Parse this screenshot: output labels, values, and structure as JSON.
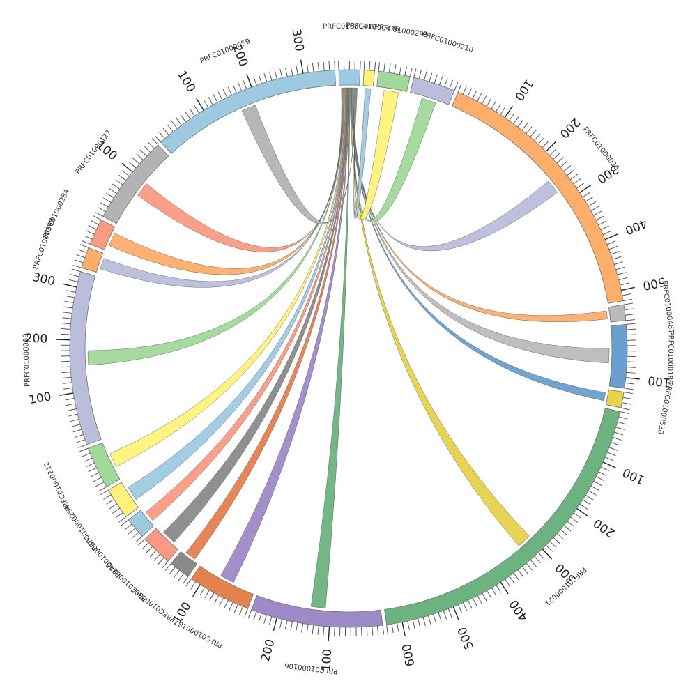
{
  "chart_data": {
    "type": "chord",
    "segments": [
      {
        "name": "PRFC01000410",
        "length": 40,
        "color": "#9ecae1"
      },
      {
        "name": "PRFC01000476",
        "length": 20,
        "color": "#fff27a"
      },
      {
        "name": "PRFC01000293",
        "length": 60,
        "color": "#a1d99b"
      },
      {
        "name": "PRFC01000210",
        "length": 80,
        "color": "#bcbddc"
      },
      {
        "name": "PRFC01000026",
        "length": 520,
        "color": "#fdae6b"
      },
      {
        "name": "PRFC01000467",
        "length": 30,
        "color": "#bababa"
      },
      {
        "name": "PRFC01000186",
        "length": 120,
        "color": "#6a9fcf"
      },
      {
        "name": "PRFC01000538",
        "length": 30,
        "color": "#e7d24a"
      },
      {
        "name": "PRFC01000021",
        "length": 630,
        "color": "#6db37f"
      },
      {
        "name": "PRFC01000106",
        "length": 250,
        "color": "#9e8ac7"
      },
      {
        "name": "PRFC01000187",
        "length": 120,
        "color": "#e5804f"
      },
      {
        "name": "PRFC01000307",
        "length": 40,
        "color": "#8a8a8a"
      },
      {
        "name": "PRFC01000245",
        "length": 60,
        "color": "#fb9a82"
      },
      {
        "name": "PRFC01000303",
        "length": 40,
        "color": "#9ecae1"
      },
      {
        "name": "PRFC01000254",
        "length": 60,
        "color": "#fff27a"
      },
      {
        "name": "PRFC01000212",
        "length": 80,
        "color": "#a1d99b"
      },
      {
        "name": "PRFC01000069",
        "length": 330,
        "color": "#bcbddc"
      },
      {
        "name": "PRFC01000398",
        "length": 40,
        "color": "#fdae6b"
      },
      {
        "name": "PRFC01000284",
        "length": 50,
        "color": "#fb9a82"
      },
      {
        "name": "PRFC01000127",
        "length": 170,
        "color": "#b3b3b3"
      },
      {
        "name": "PRFC01000059",
        "length": 360,
        "color": "#9ecae1"
      }
    ],
    "ticks": {
      "minor": 10,
      "major": 100
    },
    "links": [
      {
        "from": "PRFC01000127",
        "to": "PRFC01000410",
        "color": "#fb9a82"
      },
      {
        "from": "PRFC01000284",
        "to": "PRFC01000410",
        "color": "#fdae6b"
      },
      {
        "from": "PRFC01000398",
        "to": "PRFC01000410",
        "color": "#bcbddc"
      },
      {
        "from": "PRFC01000069",
        "to": "PRFC01000410",
        "color": "#a1d99b"
      },
      {
        "from": "PRFC01000212",
        "to": "PRFC01000410",
        "color": "#fff27a"
      },
      {
        "from": "PRFC01000254",
        "to": "PRFC01000410",
        "color": "#9ecae1"
      },
      {
        "from": "PRFC01000303",
        "to": "PRFC01000410",
        "color": "#fb9a82"
      },
      {
        "from": "PRFC01000245",
        "to": "PRFC01000410",
        "color": "#8a8a8a"
      },
      {
        "from": "PRFC01000307",
        "to": "PRFC01000410",
        "color": "#e5804f"
      },
      {
        "from": "PRFC01000187",
        "to": "PRFC01000410",
        "color": "#9e8ac7"
      },
      {
        "from": "PRFC01000106",
        "to": "PRFC01000410",
        "color": "#6db37f"
      },
      {
        "from": "PRFC01000021",
        "to": "PRFC01000410",
        "color": "#e7d24a"
      },
      {
        "from": "PRFC01000538",
        "to": "PRFC01000410",
        "color": "#6a9fcf"
      },
      {
        "from": "PRFC01000186",
        "to": "PRFC01000410",
        "color": "#bababa"
      },
      {
        "from": "PRFC01000467",
        "to": "PRFC01000410",
        "color": "#fdae6b"
      },
      {
        "from": "PRFC01000026",
        "to": "PRFC01000410",
        "color": "#bcbddc"
      },
      {
        "from": "PRFC01000210",
        "to": "PRFC01000410",
        "color": "#a1d99b"
      },
      {
        "from": "PRFC01000293",
        "to": "PRFC01000410",
        "color": "#fff27a"
      },
      {
        "from": "PRFC01000476",
        "to": "PRFC01000410",
        "color": "#9ecae1"
      },
      {
        "from": "PRFC01000059",
        "to": "PRFC01000410",
        "color": "#b3b3b3"
      }
    ]
  }
}
